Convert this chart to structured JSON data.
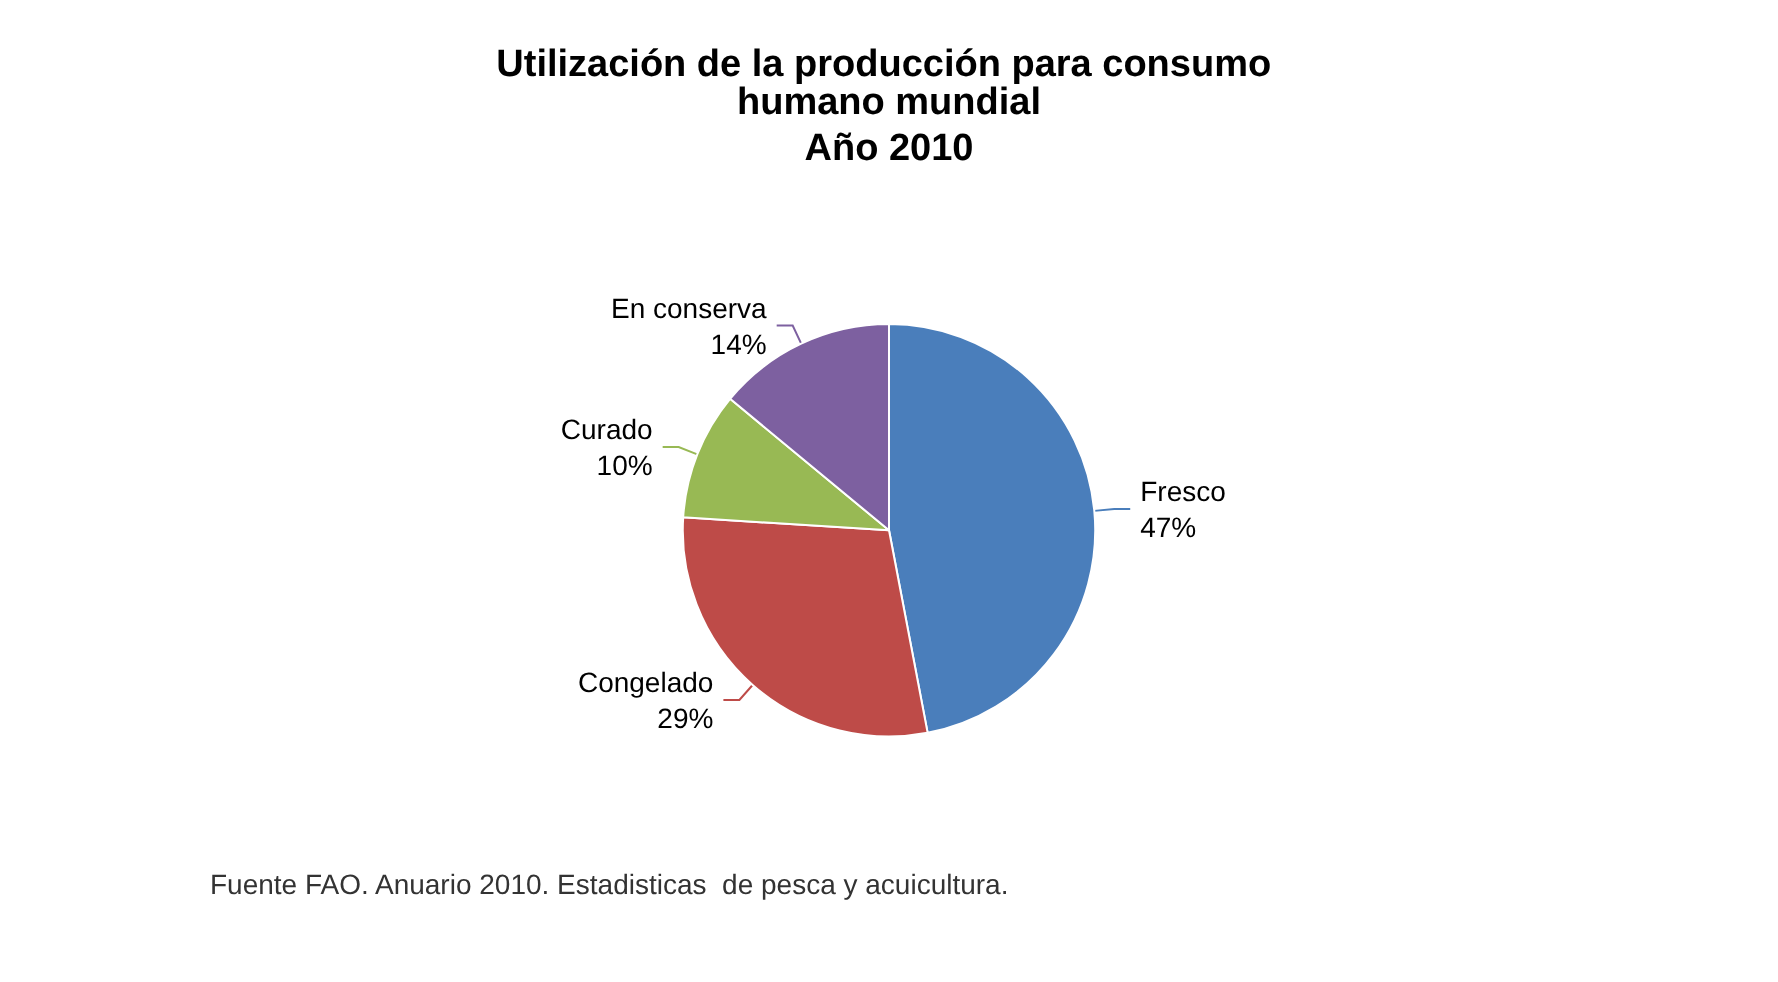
{
  "chart_data": {
    "type": "pie",
    "title": "Utilización de la producción para consumo humano mundial",
    "subtitle": "Año 2010",
    "categories": [
      "Fresco",
      "Congelado",
      "Curado",
      "En conserva"
    ],
    "values": [
      47,
      29,
      10,
      14
    ],
    "value_labels": [
      "47%",
      "29%",
      "10%",
      "14%"
    ],
    "colors": [
      "#4a7ebb",
      "#be4b48",
      "#98b954",
      "#7d60a0"
    ],
    "annotations": [
      "Fuente FAO. Anuario 2010. Estadisticas  de pesca y acuicultura."
    ]
  }
}
